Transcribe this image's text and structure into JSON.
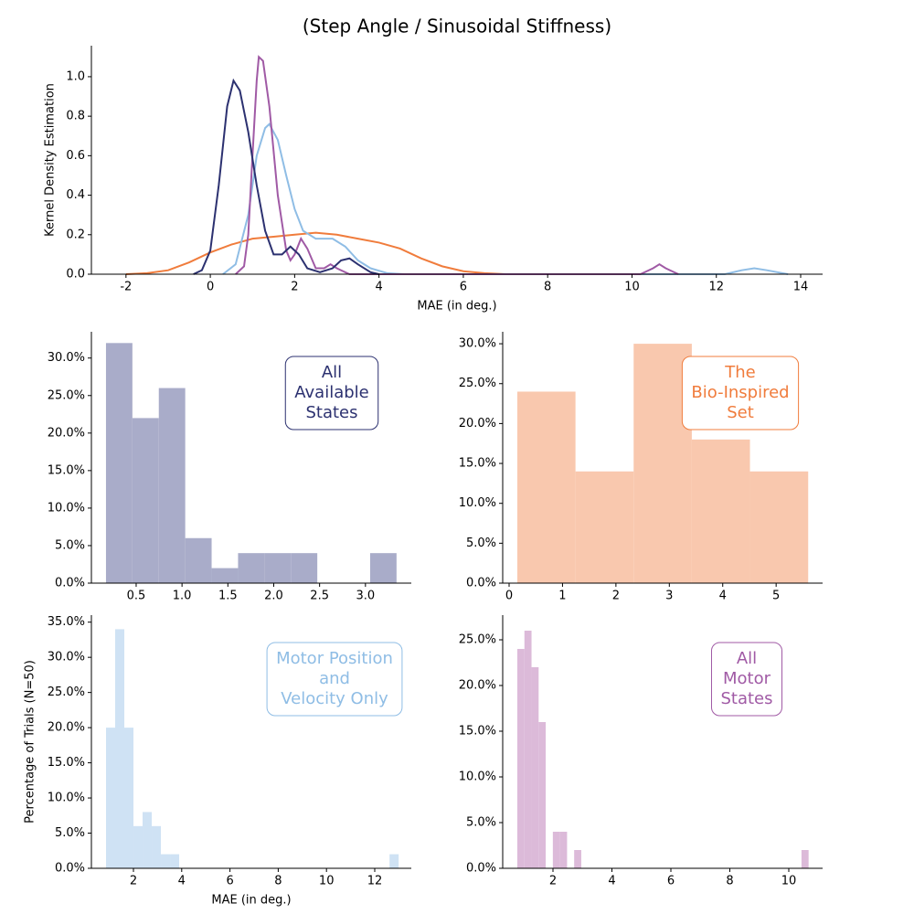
{
  "chart_data": [
    {
      "type": "line",
      "title": "(Step Angle / Sinusoidal Stiffness)",
      "x_label": "MAE (in deg.)",
      "y_label": "Kernel Density Estimation",
      "xlim": [
        -2.82,
        14.52
      ],
      "ylim": [
        0,
        1.157
      ],
      "xticks": [
        -2,
        0,
        2,
        4,
        6,
        8,
        10,
        12,
        14
      ],
      "yticks": [
        {
          "value": 0,
          "label": "0.0"
        },
        0.2,
        0.4,
        0.6,
        0.8,
        {
          "value": 1,
          "label": "1.0"
        }
      ],
      "series": [
        {
          "color": "#f07c3c",
          "x": [
            -2,
            -1.5,
            -1,
            -0.5,
            0,
            0.5,
            1,
            1.5,
            2,
            2.5,
            3,
            3.5,
            4,
            4.5,
            5,
            5.5,
            6,
            6.5,
            7
          ],
          "values": [
            0,
            0.005,
            0.02,
            0.06,
            0.11,
            0.15,
            0.18,
            0.19,
            0.2,
            0.21,
            0.2,
            0.18,
            0.16,
            0.13,
            0.08,
            0.04,
            0.015,
            0.005,
            0
          ]
        },
        {
          "color": "#8fbde5",
          "x": [
            0.3,
            0.6,
            0.9,
            1.1,
            1.3,
            1.4,
            1.6,
            1.8,
            2.0,
            2.2,
            2.5,
            2.9,
            3.2,
            3.5,
            3.8,
            4.2,
            4.6,
            12.2,
            12.6,
            12.9,
            13.2,
            13.7
          ],
          "values": [
            0,
            0.05,
            0.3,
            0.6,
            0.74,
            0.76,
            0.68,
            0.5,
            0.33,
            0.22,
            0.18,
            0.18,
            0.14,
            0.07,
            0.03,
            0.005,
            0,
            0,
            0.02,
            0.03,
            0.02,
            0
          ]
        },
        {
          "color": "#a05aa5",
          "x": [
            0.6,
            0.8,
            0.9,
            1.0,
            1.1,
            1.15,
            1.25,
            1.4,
            1.6,
            1.8,
            1.9,
            2.0,
            2.15,
            2.3,
            2.5,
            2.7,
            2.85,
            3.0,
            3.3,
            10.2,
            10.5,
            10.65,
            10.8,
            11.1
          ],
          "values": [
            0,
            0.04,
            0.2,
            0.6,
            0.98,
            1.1,
            1.08,
            0.85,
            0.4,
            0.12,
            0.07,
            0.1,
            0.18,
            0.13,
            0.03,
            0.03,
            0.05,
            0.03,
            0,
            0,
            0.03,
            0.05,
            0.03,
            0
          ]
        },
        {
          "color": "#2c3170",
          "x": [
            -0.4,
            -0.2,
            0,
            0.2,
            0.4,
            0.55,
            0.7,
            0.9,
            1.1,
            1.3,
            1.5,
            1.7,
            1.9,
            2.1,
            2.3,
            2.6,
            2.9,
            3.1,
            3.3,
            3.5,
            3.8,
            4.0
          ],
          "values": [
            0,
            0.02,
            0.12,
            0.45,
            0.85,
            0.98,
            0.93,
            0.72,
            0.45,
            0.22,
            0.1,
            0.1,
            0.14,
            0.1,
            0.03,
            0.01,
            0.03,
            0.07,
            0.08,
            0.05,
            0.01,
            0
          ]
        }
      ]
    },
    {
      "type": "histogram",
      "annotation": [
        "All",
        "Available",
        "States"
      ],
      "annotation_color": "#2c3170",
      "color": "#a9acc9",
      "xlim": [
        0.012,
        3.5
      ],
      "ylim": [
        0,
        33.5
      ],
      "xticks": [
        0.5,
        {
          "value": 1,
          "label": "1.0"
        },
        1.5,
        {
          "value": 2,
          "label": "2.0"
        },
        2.5,
        {
          "value": 3,
          "label": "3.0"
        }
      ],
      "yticks": [
        {
          "value": 0,
          "label": "0.0%"
        },
        {
          "value": 5,
          "label": "5.0%"
        },
        {
          "value": 10,
          "label": "10.0%"
        },
        {
          "value": 15,
          "label": "15.0%"
        },
        {
          "value": 20,
          "label": "20.0%"
        },
        {
          "value": 25,
          "label": "25.0%"
        },
        {
          "value": 30,
          "label": "30.0%"
        }
      ],
      "bins": [
        0.171,
        0.459,
        0.747,
        1.035,
        1.323,
        1.611,
        1.899,
        2.187,
        2.475,
        2.763,
        3.051,
        3.339
      ],
      "values": [
        32,
        22,
        26,
        6,
        2,
        4,
        4,
        4,
        0,
        0,
        4
      ]
    },
    {
      "type": "histogram",
      "annotation": [
        "The",
        "Bio-Inspired",
        "Set"
      ],
      "annotation_color": "#f07c3c",
      "color": "#f9c8ae",
      "xlim": [
        -0.12,
        5.87
      ],
      "ylim": [
        0,
        31.5
      ],
      "xticks": [
        0,
        1,
        2,
        3,
        4,
        5
      ],
      "yticks": [
        {
          "value": 0,
          "label": "0.0%"
        },
        {
          "value": 5,
          "label": "5.0%"
        },
        {
          "value": 10,
          "label": "10.0%"
        },
        {
          "value": 15,
          "label": "15.0%"
        },
        {
          "value": 20,
          "label": "20.0%"
        },
        {
          "value": 25,
          "label": "25.0%"
        },
        {
          "value": 30,
          "label": "30.0%"
        }
      ],
      "bins": [
        0.154,
        1.243,
        2.332,
        3.421,
        4.51,
        5.6
      ],
      "values": [
        24,
        14,
        30,
        18,
        14
      ]
    },
    {
      "type": "histogram",
      "annotation": [
        "Motor Position",
        "and",
        "Velocity Only"
      ],
      "annotation_color": "#8fbde5",
      "color": "#cfe2f4",
      "x_label": "MAE (in deg.)",
      "y_label": "Percentage of Trials (N=50)",
      "xlim": [
        0.258,
        13.515
      ],
      "ylim": [
        0,
        36
      ],
      "xticks": [
        2,
        4,
        6,
        8,
        10,
        12
      ],
      "yticks": [
        {
          "value": 0,
          "label": "0.0%"
        },
        {
          "value": 5,
          "label": "5.0%"
        },
        {
          "value": 10,
          "label": "10.0%"
        },
        {
          "value": 15,
          "label": "15.0%"
        },
        {
          "value": 20,
          "label": "20.0%"
        },
        {
          "value": 25,
          "label": "25.0%"
        },
        {
          "value": 30,
          "label": "30.0%"
        },
        {
          "value": 35,
          "label": "35.0%"
        }
      ],
      "bins": [
        0.864,
        1.243,
        1.622,
        2.001,
        2.38,
        2.759,
        3.138,
        3.517,
        3.896,
        4.275,
        4.654,
        5.033,
        5.412,
        5.791,
        6.17,
        6.549,
        6.928,
        7.307,
        7.686,
        8.065,
        8.444,
        8.823,
        9.202,
        9.581,
        9.96,
        10.339,
        10.718,
        11.097,
        11.476,
        11.855,
        12.234,
        12.613,
        12.992
      ],
      "values": [
        20,
        34,
        20,
        6,
        8,
        6,
        2,
        2,
        0,
        0,
        0,
        0,
        0,
        0,
        0,
        0,
        0,
        0,
        0,
        0,
        0,
        0,
        0,
        0,
        0,
        0,
        0,
        0,
        0,
        0,
        0,
        2
      ]
    },
    {
      "type": "histogram",
      "annotation": [
        "All",
        "Motor",
        "States"
      ],
      "annotation_color": "#a05aa5",
      "color": "#dcbad9",
      "xlim": [
        0.295,
        11.147
      ],
      "ylim": [
        0,
        27.7
      ],
      "xticks": [
        2,
        4,
        6,
        8,
        10
      ],
      "yticks": [
        {
          "value": 0,
          "label": "0.0%"
        },
        {
          "value": 5,
          "label": "5.0%"
        },
        {
          "value": 10,
          "label": "10.0%"
        },
        {
          "value": 15,
          "label": "15.0%"
        },
        {
          "value": 20,
          "label": "20.0%"
        },
        {
          "value": 25,
          "label": "25.0%"
        }
      ],
      "bins": [
        0.791,
        1.032,
        1.273,
        1.514,
        1.755,
        1.996,
        2.237,
        2.478,
        2.719,
        2.96,
        3.201,
        3.442,
        3.683,
        3.924,
        4.165,
        4.406,
        4.647,
        4.888,
        5.129,
        5.37,
        5.611,
        5.852,
        6.093,
        6.334,
        6.575,
        6.816,
        7.057,
        7.298,
        7.539,
        7.78,
        8.021,
        8.262,
        8.503,
        8.744,
        8.985,
        9.226,
        9.467,
        9.708,
        9.949,
        10.19,
        10.431,
        10.672
      ],
      "values": [
        24,
        26,
        22,
        16,
        0,
        4,
        4,
        0,
        2,
        0,
        0,
        0,
        0,
        0,
        0,
        0,
        0,
        0,
        0,
        0,
        0,
        0,
        0,
        0,
        0,
        0,
        0,
        0,
        0,
        0,
        0,
        0,
        0,
        0,
        0,
        0,
        0,
        0,
        0,
        0,
        2
      ]
    }
  ]
}
